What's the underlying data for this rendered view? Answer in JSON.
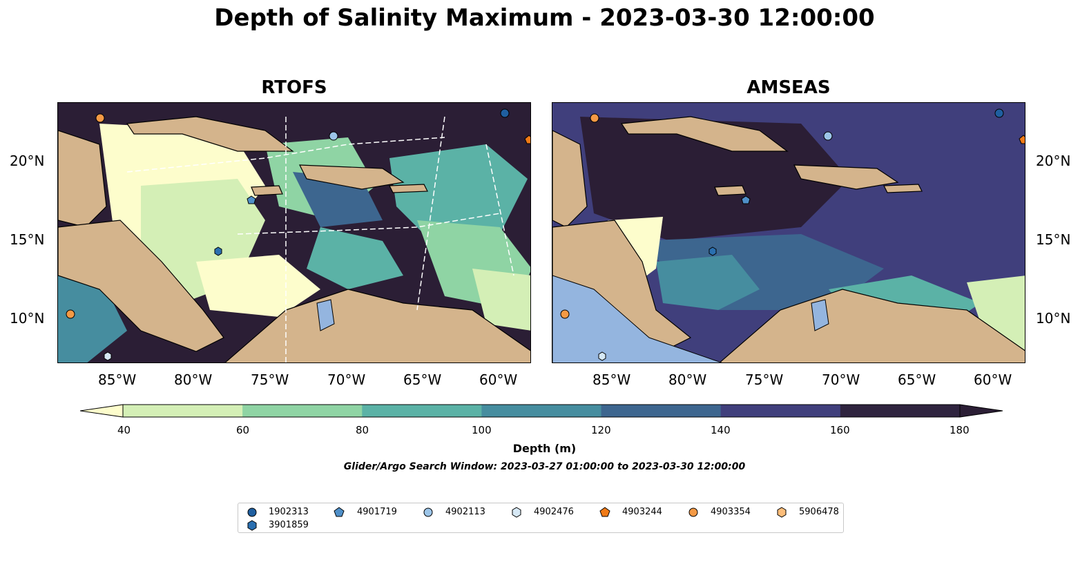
{
  "title": "Depth of Salinity Maximum - 2023-03-30 12:00:00",
  "panels": [
    {
      "title": "RTOFS"
    },
    {
      "title": "AMSEAS"
    }
  ],
  "axes": {
    "y_ticks": [
      "20°N",
      "15°N",
      "10°N"
    ],
    "x_ticks": [
      "85°W",
      "80°W",
      "75°W",
      "70°W",
      "65°W",
      "60°W"
    ]
  },
  "colorbar": {
    "label": "Depth (m)",
    "ticks": [
      "40",
      "60",
      "80",
      "100",
      "120",
      "140",
      "160",
      "180"
    ],
    "colors": [
      "#fdfdcc",
      "#d4efb6",
      "#8fd4a4",
      "#5bb2a6",
      "#468d9f",
      "#3d668f",
      "#403f7c",
      "#2f243f",
      "#2b1e35"
    ]
  },
  "search_window": "Glider/Argo Search Window: 2023-03-27 01:00:00 to 2023-03-30 12:00:00",
  "chart_data": {
    "type": "heatmap",
    "value_label": "Depth (m)",
    "levels": [
      40,
      60,
      80,
      100,
      120,
      140,
      160,
      180
    ],
    "extend": "both",
    "lon_ticks": [
      "85°W",
      "80°W",
      "75°W",
      "70°W",
      "65°W",
      "60°W"
    ],
    "lat_ticks": [
      "20°N",
      "15°N",
      "10°N"
    ]
  },
  "legend": {
    "items": [
      {
        "id": "1902313",
        "shape": "circle",
        "color": "#1f5fa0"
      },
      {
        "id": "4901719",
        "shape": "pentagon",
        "color": "#4f8fc8"
      },
      {
        "id": "4902113",
        "shape": "circle",
        "color": "#9cc5e8"
      },
      {
        "id": "4902476",
        "shape": "hexagon",
        "color": "#d6e8f5"
      },
      {
        "id": "4903244",
        "shape": "pentagon",
        "color": "#f07a16"
      },
      {
        "id": "4903354",
        "shape": "circle",
        "color": "#f59a45"
      },
      {
        "id": "5906478",
        "shape": "hexagon",
        "color": "#fcbd7a"
      },
      {
        "id": "3901859",
        "shape": "hexagon",
        "color": "#2a6fb0"
      }
    ]
  }
}
